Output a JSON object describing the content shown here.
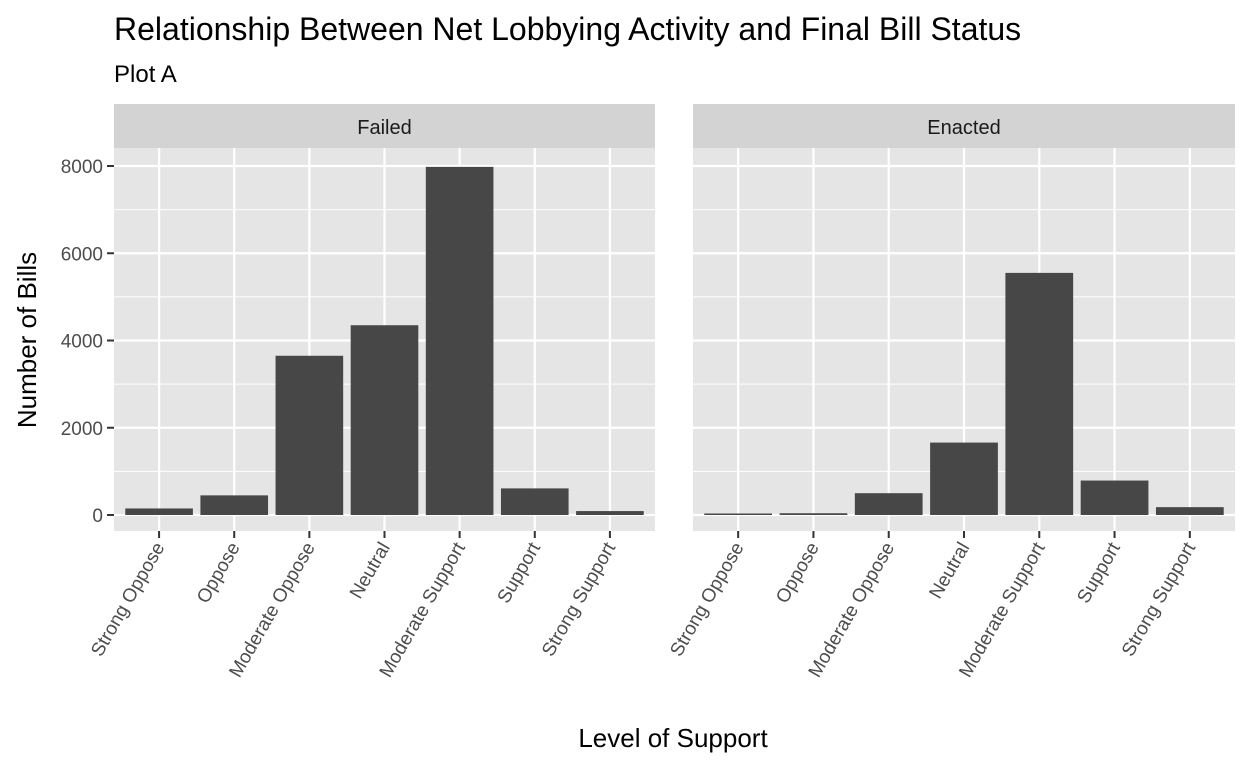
{
  "chart_data": {
    "type": "bar",
    "title": "Relationship Between Net Lobbying Activity and Final Bill Status",
    "subtitle": "Plot A",
    "xlabel": "Level of Support",
    "ylabel": "Number of Bills",
    "categories": [
      "Strong Oppose",
      "Oppose",
      "Moderate Oppose",
      "Neutral",
      "Moderate Support",
      "Support",
      "Strong Support"
    ],
    "ylim": [
      0,
      8000
    ],
    "yticks": [
      0,
      2000,
      4000,
      6000,
      8000
    ],
    "grid": true,
    "colors": {
      "bar": "#474747",
      "panel": "#e5e5e5",
      "strip": "#d3d3d3",
      "grid": "#ffffff"
    },
    "facets": [
      {
        "label": "Failed",
        "values": [
          150,
          450,
          3650,
          4350,
          7980,
          610,
          90
        ]
      },
      {
        "label": "Enacted",
        "values": [
          15,
          40,
          500,
          1660,
          5550,
          790,
          180
        ]
      }
    ]
  }
}
